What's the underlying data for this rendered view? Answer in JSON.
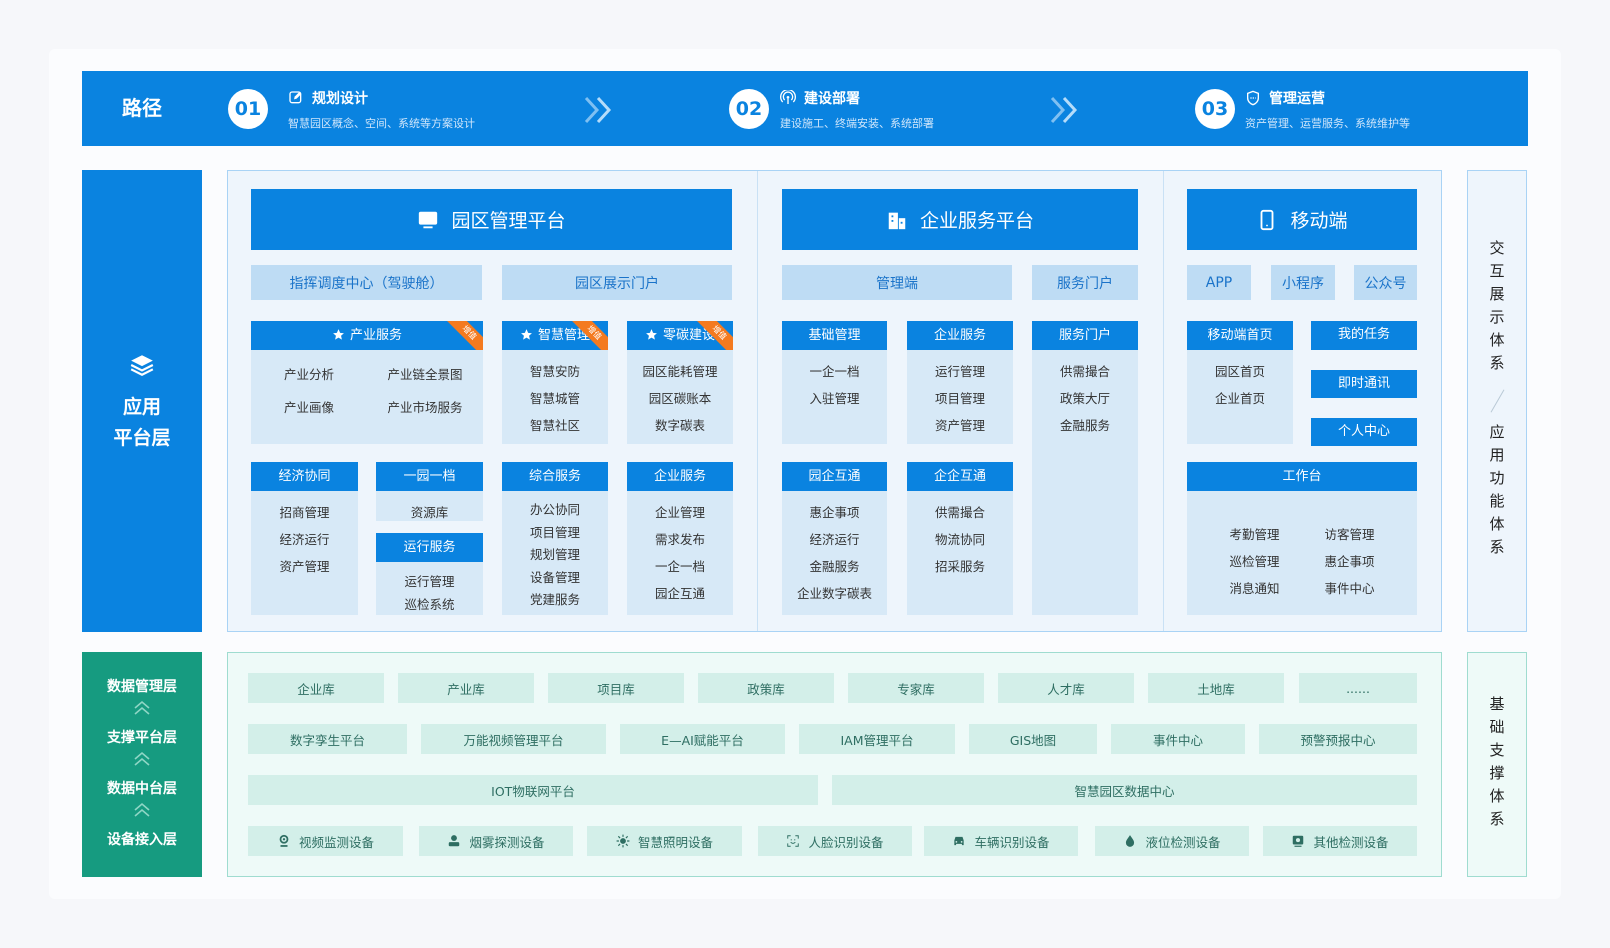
{
  "path_bar": {
    "label": "路径",
    "steps": [
      {
        "num": "01",
        "icon": "edit-icon",
        "title": "规划设计",
        "desc": "智慧园区概念、空间、系统等方案设计"
      },
      {
        "num": "02",
        "icon": "signal-icon",
        "title": "建设部署",
        "desc": "建设施工、终端安装、系统部署"
      },
      {
        "num": "03",
        "icon": "shield-icon",
        "title": "管理运营",
        "desc": "资产管理、运营服务、系统维护等"
      }
    ]
  },
  "app_layer": {
    "icon": "layers-icon",
    "label_line1": "应用",
    "label_line2": "平台层",
    "platforms": [
      {
        "title": "园区管理平台",
        "icon": "monitor-icon",
        "portals": [
          "指挥调度中心（驾驶舱）",
          "园区展示门户"
        ]
      },
      {
        "title": "企业服务平台",
        "icon": "building-icon",
        "portals": [
          "管理端",
          "服务门户"
        ]
      },
      {
        "title": "移动端",
        "icon": "phone-icon",
        "portals": [
          "APP",
          "小程序",
          "公众号"
        ]
      }
    ],
    "cards": [
      {
        "title": "产业服务",
        "star": true,
        "badge": "增值",
        "items": [
          "产业分析",
          "产业链全景图",
          "产业画像",
          "产业市场服务"
        ]
      },
      {
        "title": "智慧管理",
        "star": true,
        "badge": "增值",
        "items": [
          "智慧安防",
          "智慧城管",
          "智慧社区"
        ]
      },
      {
        "title": "零碳建设",
        "star": true,
        "badge": "增值",
        "items": [
          "园区能耗管理",
          "园区碳账本",
          "数字碳表"
        ]
      },
      {
        "title": "经济协同",
        "items": [
          "招商管理",
          "经济运行",
          "资产管理"
        ]
      },
      {
        "title": "一园一档",
        "items": [
          "资源库"
        ]
      },
      {
        "title": "运行服务",
        "items": [
          "运行管理",
          "巡检系统"
        ]
      },
      {
        "title": "综合服务",
        "items": [
          "办公协同",
          "项目管理",
          "规划管理",
          "设备管理",
          "党建服务"
        ]
      },
      {
        "title": "企业服务",
        "items": [
          "企业管理",
          "需求发布",
          "一企一档",
          "园企互通"
        ]
      },
      {
        "title": "基础管理",
        "items": [
          "一企一档",
          "入驻管理"
        ]
      },
      {
        "title": "企业服务",
        "items": [
          "运行管理",
          "项目管理",
          "资产管理"
        ]
      },
      {
        "title": "服务门户",
        "items": [
          "供需撮合",
          "政策大厅",
          "金融服务"
        ]
      },
      {
        "title": "园企互通",
        "items": [
          "惠企事项",
          "经济运行",
          "金融服务",
          "企业数字碳表"
        ]
      },
      {
        "title": "企企互通",
        "items": [
          "供需撮合",
          "物流协同",
          "招采服务"
        ]
      },
      {
        "title": "移动端首页",
        "items": [
          "园区首页",
          "企业首页"
        ]
      },
      {
        "title": "工作台",
        "items": [
          "考勤管理",
          "访客管理",
          "巡检管理",
          "惠企事项",
          "消息通知",
          "事件中心"
        ]
      }
    ],
    "mobile_buttons": [
      "我的任务",
      "即时通讯",
      "个人中心"
    ]
  },
  "side_labels": {
    "interaction": "交互展示体系",
    "function": "应用功能体系",
    "support": "基础支撑体系"
  },
  "base_layer": {
    "layers": [
      "数据管理层",
      "支撑平台层",
      "数据中台层",
      "设备接入层"
    ],
    "databases": [
      "企业库",
      "产业库",
      "项目库",
      "政策库",
      "专家库",
      "人才库",
      "土地库",
      "......"
    ],
    "platforms": [
      "数字孪生平台",
      "万能视频管理平台",
      "E—AI赋能平台",
      "IAM管理平台",
      "GIS地图",
      "事件中心",
      "预警预报中心"
    ],
    "middle": [
      "IOT物联网平台",
      "智慧园区数据中心"
    ],
    "devices": [
      {
        "label": "视频监测设备",
        "icon": "camera-icon"
      },
      {
        "label": "烟雾探测设备",
        "icon": "smoke-detector-icon"
      },
      {
        "label": "智慧照明设备",
        "icon": "light-icon"
      },
      {
        "label": "人脸识别设备",
        "icon": "face-scan-icon"
      },
      {
        "label": "车辆识别设备",
        "icon": "car-icon"
      },
      {
        "label": "液位检测设备",
        "icon": "drop-icon"
      },
      {
        "label": "其他检测设备",
        "icon": "monitor-device-icon"
      }
    ]
  },
  "colors": {
    "primary_blue": "#0a83e0",
    "badge_orange": "#f47a1f",
    "base_green": "#169b80",
    "base_box": "#d3efe9"
  }
}
